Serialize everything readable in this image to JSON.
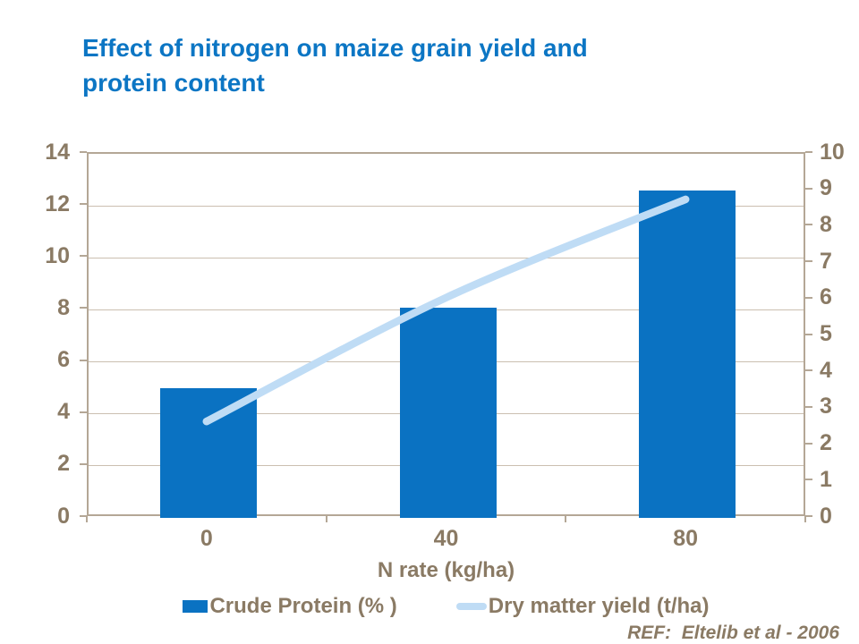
{
  "title": {
    "line1": "Effect of nitrogen on maize grain yield and",
    "line2": "protein content"
  },
  "colors": {
    "title": "#0c76c4",
    "bar": "#0a72c2",
    "line": "#bfdcf5",
    "text": "#8a7a64",
    "axis": "#b4a796",
    "grid": "#cbbfb0"
  },
  "chart_data": {
    "type": "combo",
    "title": "Effect of nitrogen on maize grain yield and protein content",
    "categories": [
      "0",
      "40",
      "80"
    ],
    "xlabel": "N rate (kg/ha)",
    "series": [
      {
        "name": "Crude Protein (% )",
        "type": "bar",
        "axis": "left",
        "values": [
          5.0,
          8.1,
          12.6
        ],
        "color": "#0a72c2"
      },
      {
        "name": "Dry matter yield (t/ha)",
        "type": "line",
        "axis": "right",
        "values": [
          2.6,
          6.0,
          8.7
        ],
        "color": "#bfdcf5",
        "smooth": true
      }
    ],
    "left_axis": {
      "min": 0,
      "max": 14,
      "step": 2,
      "ticks": [
        "0",
        "2",
        "4",
        "6",
        "8",
        "10",
        "12",
        "14"
      ]
    },
    "right_axis": {
      "min": 0,
      "max": 10,
      "step": 1,
      "ticks": [
        "0",
        "1",
        "2",
        "3",
        "4",
        "5",
        "6",
        "7",
        "8",
        "9",
        "10"
      ]
    },
    "grid": true,
    "legend_position": "bottom"
  },
  "legend": {
    "items": [
      {
        "label": "Crude Protein (% )",
        "swatch": "bar"
      },
      {
        "label": "Dry matter yield (t/ha)",
        "swatch": "line"
      }
    ]
  },
  "footer": {
    "ref": "REF:  Eltelib et al - 2006"
  }
}
